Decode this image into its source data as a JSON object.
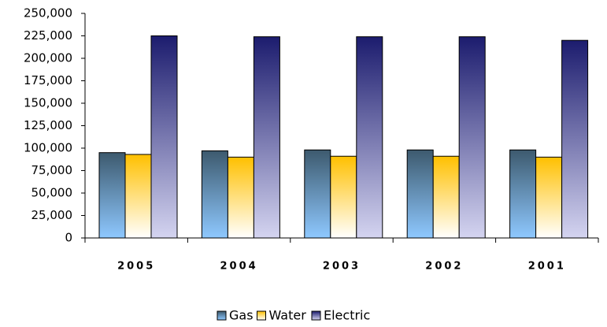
{
  "chart_data": {
    "type": "bar",
    "categories": [
      "2005",
      "2004",
      "2003",
      "2002",
      "2001"
    ],
    "series": [
      {
        "name": "Gas",
        "color": "#3d5a6e",
        "values": [
          95000,
          97000,
          98000,
          98000,
          98000
        ]
      },
      {
        "name": "Water",
        "color": "#ffc000",
        "values": [
          93000,
          90000,
          91000,
          91000,
          90000
        ]
      },
      {
        "name": "Electric",
        "color": "#1c1c6e",
        "values": [
          225000,
          224000,
          224000,
          224000,
          220000
        ]
      }
    ],
    "ylim": [
      0,
      250000
    ],
    "yticks": [
      0,
      {
        "value": 25000,
        "label": "25,000"
      },
      {
        "value": 50000,
        "label": "50,000"
      },
      {
        "value": 75000,
        "label": "75,000"
      },
      {
        "value": 100000,
        "label": "100,000"
      },
      {
        "value": 125000,
        "label": "125,000"
      },
      {
        "value": 150000,
        "label": "150,000"
      },
      {
        "value": 175000,
        "label": "175,000"
      },
      {
        "value": 200000,
        "label": "200,000"
      },
      {
        "value": 225000,
        "label": "225,000"
      },
      {
        "value": 250000,
        "label": "250,000"
      }
    ],
    "grid": false
  }
}
